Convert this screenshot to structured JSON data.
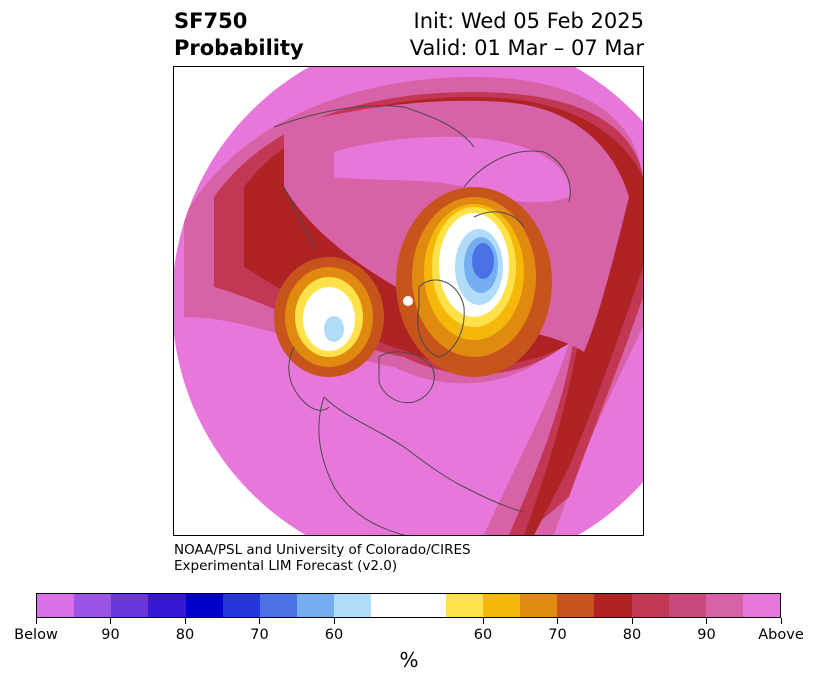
{
  "title": {
    "left_line1": "SF750",
    "left_line2": "Probability",
    "right_line1": "Init: Wed 05 Feb 2025",
    "right_line2": "Valid: 01 Mar – 07 Mar"
  },
  "credit": {
    "line1": "NOAA/PSL and University of Colorado/CIRES",
    "line2": "Experimental LIM Forecast (v2.0)"
  },
  "colorbar": {
    "colors": [
      "#da70e8",
      "#9b55e6",
      "#6a36db",
      "#3418d4",
      "#0000cd",
      "#2535dc",
      "#4a72e6",
      "#75aef0",
      "#b0dcfa",
      "#ffffff",
      "#ffffff",
      "#ffe14a",
      "#f5b80a",
      "#e08a10",
      "#c7541b",
      "#b02325",
      "#c23753",
      "#c84a7c",
      "#d862a8",
      "#e877dc"
    ],
    "tick_labels": [
      "Below",
      "90",
      "80",
      "70",
      "60",
      "60",
      "70",
      "80",
      "90",
      "Above"
    ],
    "unit": "%"
  },
  "map": {
    "fill_colors": {
      "above": "#e877dc",
      "p90": "#d862a8",
      "p80": "#c23753",
      "p75": "#b02325",
      "p70": "#c7541b",
      "p65": "#e08a10",
      "p60": "#f5b80a",
      "p55": "#ffe14a",
      "neutral": "#ffffff",
      "b60": "#b0dcfa",
      "b65": "#75aef0",
      "b70": "#4a72e6"
    }
  }
}
